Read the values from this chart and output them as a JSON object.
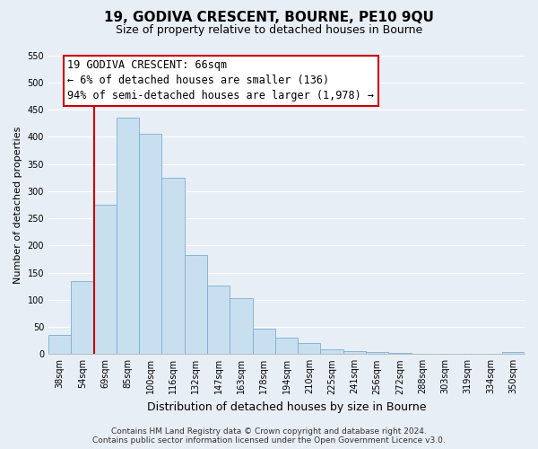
{
  "title": "19, GODIVA CRESCENT, BOURNE, PE10 9QU",
  "subtitle": "Size of property relative to detached houses in Bourne",
  "xlabel": "Distribution of detached houses by size in Bourne",
  "ylabel": "Number of detached properties",
  "bar_labels": [
    "38sqm",
    "54sqm",
    "69sqm",
    "85sqm",
    "100sqm",
    "116sqm",
    "132sqm",
    "147sqm",
    "163sqm",
    "178sqm",
    "194sqm",
    "210sqm",
    "225sqm",
    "241sqm",
    "256sqm",
    "272sqm",
    "288sqm",
    "303sqm",
    "319sqm",
    "334sqm",
    "350sqm"
  ],
  "bar_values": [
    35,
    135,
    275,
    435,
    405,
    325,
    183,
    126,
    103,
    47,
    30,
    21,
    8,
    5,
    3,
    2,
    1,
    1,
    1,
    1,
    3
  ],
  "bar_color": "#c8dff0",
  "bar_edge_color": "#7aafd4",
  "property_line_label": "19 GODIVA CRESCENT: 66sqm",
  "annotation_line1": "← 6% of detached houses are smaller (136)",
  "annotation_line2": "94% of semi-detached houses are larger (1,978) →",
  "box_edge_color": "#cc0000",
  "vline_color": "#cc0000",
  "ylim": [
    0,
    550
  ],
  "yticks": [
    0,
    50,
    100,
    150,
    200,
    250,
    300,
    350,
    400,
    450,
    500,
    550
  ],
  "footer_line1": "Contains HM Land Registry data © Crown copyright and database right 2024.",
  "footer_line2": "Contains public sector information licensed under the Open Government Licence v3.0.",
  "background_color": "#e8eef5",
  "grid_color": "#ffffff",
  "title_fontsize": 11,
  "subtitle_fontsize": 9,
  "annotation_fontsize": 8.5,
  "axis_label_fontsize": 8,
  "xlabel_fontsize": 9,
  "tick_fontsize": 7,
  "footer_fontsize": 6.5
}
